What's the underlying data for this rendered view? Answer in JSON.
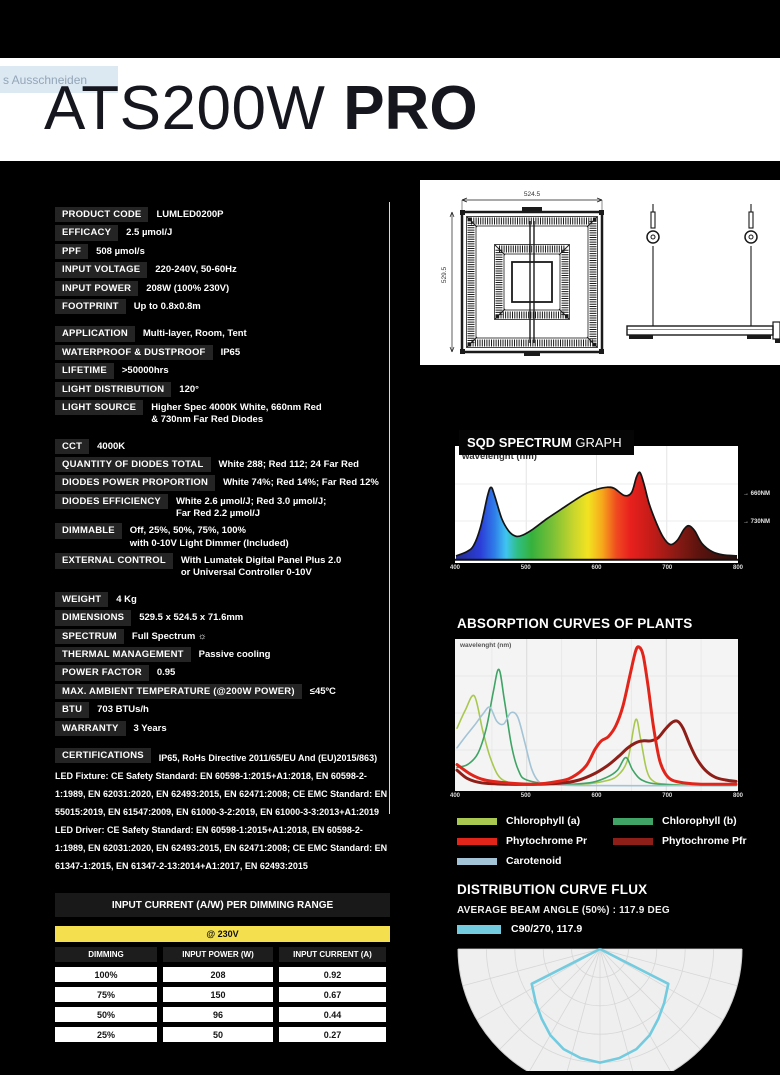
{
  "artifact": {
    "label": "s Ausschneiden"
  },
  "header": {
    "model": "ATS200W",
    "variant": "PRO"
  },
  "colors": {
    "accent_yellow": "#f4df4e",
    "curve_cyan": "#72cbdf",
    "spec_chip": "#242424"
  },
  "spec_groups": [
    [
      {
        "label": "PRODUCT CODE",
        "value": "LUMLED0200P"
      },
      {
        "label": "EFFICACY",
        "value": "2.5 µmol/J"
      },
      {
        "label": "PPF",
        "value": "508 µmol/s"
      },
      {
        "label": "INPUT VOLTAGE",
        "value": "220-240V, 50-60Hz"
      },
      {
        "label": "INPUT POWER",
        "value": "208W (100% 230V)"
      },
      {
        "label": "FOOTPRINT",
        "value": "Up to 0.8x0.8m"
      }
    ],
    [
      {
        "label": "APPLICATION",
        "value": "Multi-layer, Room, Tent"
      },
      {
        "label": "WATERPROOF & DUSTPROOF",
        "value": "IP65"
      },
      {
        "label": "LIFETIME",
        "value": ">50000hrs"
      },
      {
        "label": "LIGHT DISTRIBUTION",
        "value": "120°"
      },
      {
        "label": "LIGHT SOURCE",
        "value": "Higher Spec 4000K White, 660nm Red\n& 730nm Far Red Diodes"
      }
    ],
    [
      {
        "label": "CCT",
        "value": "4000K"
      },
      {
        "label": "QUANTITY OF DIODES TOTAL",
        "value": "White 288; Red 112; 24 Far Red"
      },
      {
        "label": "DIODES POWER PROPORTION",
        "value": "White 74%; Red 14%; Far Red 12%"
      },
      {
        "label": "DIODES EFFICIENCY",
        "value": "White 2.6 µmol/J; Red 3.0 µmol/J;\nFar Red 2.2 µmol/J"
      },
      {
        "label": "DIMMABLE",
        "value": "Off, 25%, 50%, 75%, 100%\nwith 0-10V Light Dimmer (Included)"
      },
      {
        "label": "EXTERNAL CONTROL",
        "value": "With Lumatek Digital Panel Plus 2.0\nor Universal Controller 0-10V"
      }
    ],
    [
      {
        "label": "WEIGHT",
        "value": "4 Kg"
      },
      {
        "label": "DIMENSIONS",
        "value": "529.5 x 524.5 x 71.6mm"
      },
      {
        "label": "SPECTRUM",
        "value": "Full Spectrum ☼"
      },
      {
        "label": "THERMAL MANAGEMENT",
        "value": "Passive cooling"
      },
      {
        "label": "POWER FACTOR",
        "value": "0.95"
      },
      {
        "label": "MAX. AMBIENT TEMPERATURE (@200W POWER)",
        "value": "≤45ºC"
      },
      {
        "label": "BTU",
        "value": "703 BTUs/h"
      },
      {
        "label": "WARRANTY",
        "value": "3 Years"
      }
    ],
    [
      {
        "label": "CERTIFICATIONS",
        "flow": true,
        "value": "IP65, RoHs Directive 2011/65/EU And (EU)2015/863)\nLED Fixture: CE Safety Standard: EN 60598-1:2015+A1:2018, EN 60598-2-1:1989, EN 62031:2020, EN 62493:2015, EN 62471:2008; CE EMC Standard: EN 55015:2019, EN 61547:2009, EN 61000-3-2:2019, EN 61000-3-3:2013+A1:2019\nLED Driver: CE Safety Standard: EN 60598-1:2015+A1:2018, EN 60598-2-1:1989, EN 62031:2020, EN 62493:2015, EN 62471:2008; CE EMC Standard: EN 61347-1:2015, EN 61347-2-13:2014+A1:2017, EN 62493:2015"
      }
    ]
  ],
  "drawing": {
    "dim_top": "524.5",
    "dim_left": "529.5"
  },
  "table": {
    "title_pre": "INPUT CURRENT ",
    "title_bold": "(A/W)",
    "title_post": " PER DIMMING RANGE",
    "voltage": "@ 230V",
    "headers": [
      "DIMMING",
      "INPUT POWER (W)",
      "INPUT CURRENT (A)"
    ],
    "rows": [
      [
        "100%",
        "208",
        "0.92"
      ],
      [
        "75%",
        "150",
        "0.67"
      ],
      [
        "50%",
        "96",
        "0.44"
      ],
      [
        "25%",
        "50",
        "0.27"
      ]
    ]
  },
  "chart_data": [
    {
      "id": "sqd-spectrum",
      "type": "area",
      "title_bold": "SQD SPECTRUM",
      "title_rest": "GRAPH",
      "xlabel": "wavelenght (nm)",
      "xlim": [
        400,
        800
      ],
      "x_ticks": [
        400,
        500,
        600,
        700,
        800
      ],
      "grid": true,
      "annotations": [
        "→ 660NM",
        "→ 730NM"
      ],
      "points": [
        [
          400,
          0.02
        ],
        [
          415,
          0.06
        ],
        [
          425,
          0.12
        ],
        [
          435,
          0.3
        ],
        [
          445,
          0.6
        ],
        [
          450,
          0.68
        ],
        [
          455,
          0.6
        ],
        [
          465,
          0.38
        ],
        [
          475,
          0.26
        ],
        [
          485,
          0.21
        ],
        [
          495,
          0.22
        ],
        [
          510,
          0.28
        ],
        [
          530,
          0.38
        ],
        [
          550,
          0.47
        ],
        [
          570,
          0.56
        ],
        [
          585,
          0.62
        ],
        [
          600,
          0.66
        ],
        [
          615,
          0.68
        ],
        [
          625,
          0.67
        ],
        [
          640,
          0.6
        ],
        [
          650,
          0.63
        ],
        [
          657,
          0.78
        ],
        [
          662,
          0.82
        ],
        [
          668,
          0.7
        ],
        [
          675,
          0.52
        ],
        [
          685,
          0.34
        ],
        [
          695,
          0.2
        ],
        [
          705,
          0.13
        ],
        [
          715,
          0.17
        ],
        [
          725,
          0.28
        ],
        [
          732,
          0.31
        ],
        [
          740,
          0.26
        ],
        [
          750,
          0.14
        ],
        [
          765,
          0.06
        ],
        [
          780,
          0.03
        ],
        [
          800,
          0.02
        ]
      ],
      "gradient": [
        [
          "0%",
          "#232a8f"
        ],
        [
          "9%",
          "#2b3ed8"
        ],
        [
          "14%",
          "#2f7de8"
        ],
        [
          "18%",
          "#3fc4f2"
        ],
        [
          "22%",
          "#2fbf86"
        ],
        [
          "27%",
          "#35b13c"
        ],
        [
          "35%",
          "#7fc136"
        ],
        [
          "42%",
          "#c9d62c"
        ],
        [
          "47%",
          "#f2e321"
        ],
        [
          "52%",
          "#f7a81b"
        ],
        [
          "57%",
          "#ef4b20"
        ],
        [
          "62%",
          "#e8201d"
        ],
        [
          "70%",
          "#c01c18"
        ],
        [
          "78%",
          "#8c1a14"
        ],
        [
          "86%",
          "#5d130e"
        ],
        [
          "100%",
          "#27100c"
        ]
      ]
    },
    {
      "id": "absorption-curves",
      "type": "line",
      "title": "ABSORPTION CURVES OF PLANTS",
      "xlabel": "wavelenght (nm)",
      "xlim": [
        400,
        800
      ],
      "x_ticks": [
        400,
        500,
        600,
        700,
        800
      ],
      "grid": true,
      "series": [
        {
          "name": "Chlorophyll (a)",
          "color": "#a9c850",
          "width": 1.6,
          "points": [
            [
              400,
              0.42
            ],
            [
              412,
              0.55
            ],
            [
              425,
              0.65
            ],
            [
              437,
              0.4
            ],
            [
              447,
              0.22
            ],
            [
              458,
              0.09
            ],
            [
              470,
              0.04
            ],
            [
              490,
              0.02
            ],
            [
              530,
              0.02
            ],
            [
              580,
              0.02
            ],
            [
              610,
              0.04
            ],
            [
              630,
              0.08
            ],
            [
              645,
              0.2
            ],
            [
              656,
              0.48
            ],
            [
              663,
              0.35
            ],
            [
              672,
              0.12
            ],
            [
              682,
              0.04
            ],
            [
              700,
              0.02
            ],
            [
              750,
              0.01
            ],
            [
              800,
              0.01
            ]
          ]
        },
        {
          "name": "Chlorophyll (b)",
          "color": "#3fa465",
          "width": 1.6,
          "points": [
            [
              400,
              0.14
            ],
            [
              415,
              0.16
            ],
            [
              430,
              0.24
            ],
            [
              442,
              0.42
            ],
            [
              452,
              0.68
            ],
            [
              460,
              0.84
            ],
            [
              468,
              0.62
            ],
            [
              478,
              0.3
            ],
            [
              488,
              0.12
            ],
            [
              500,
              0.05
            ],
            [
              540,
              0.02
            ],
            [
              590,
              0.03
            ],
            [
              615,
              0.07
            ],
            [
              630,
              0.12
            ],
            [
              642,
              0.21
            ],
            [
              652,
              0.12
            ],
            [
              665,
              0.05
            ],
            [
              690,
              0.02
            ],
            [
              750,
              0.01
            ],
            [
              800,
              0.01
            ]
          ]
        },
        {
          "name": "Carotenoid",
          "color": "#a3c4d6",
          "width": 1.6,
          "points": [
            [
              400,
              0.28
            ],
            [
              412,
              0.36
            ],
            [
              425,
              0.44
            ],
            [
              437,
              0.52
            ],
            [
              447,
              0.57
            ],
            [
              457,
              0.47
            ],
            [
              467,
              0.45
            ],
            [
              477,
              0.53
            ],
            [
              487,
              0.5
            ],
            [
              497,
              0.32
            ],
            [
              507,
              0.13
            ],
            [
              517,
              0.04
            ],
            [
              530,
              0.02
            ],
            [
              580,
              0.01
            ],
            [
              800,
              0.01
            ]
          ]
        },
        {
          "name": "Phytochrome Pfr",
          "color": "#8e1e18",
          "width": 3,
          "points": [
            [
              400,
              0.12
            ],
            [
              415,
              0.06
            ],
            [
              435,
              0.03
            ],
            [
              470,
              0.02
            ],
            [
              520,
              0.02
            ],
            [
              555,
              0.03
            ],
            [
              575,
              0.05
            ],
            [
              595,
              0.09
            ],
            [
              615,
              0.15
            ],
            [
              632,
              0.22
            ],
            [
              645,
              0.28
            ],
            [
              658,
              0.32
            ],
            [
              668,
              0.33
            ],
            [
              678,
              0.33
            ],
            [
              688,
              0.35
            ],
            [
              698,
              0.41
            ],
            [
              708,
              0.46
            ],
            [
              716,
              0.47
            ],
            [
              724,
              0.42
            ],
            [
              734,
              0.3
            ],
            [
              744,
              0.2
            ],
            [
              756,
              0.12
            ],
            [
              770,
              0.07
            ],
            [
              785,
              0.05
            ],
            [
              800,
              0.04
            ]
          ]
        },
        {
          "name": "Phytochrome Pr",
          "color": "#e1251b",
          "width": 3,
          "points": [
            [
              400,
              0.16
            ],
            [
              420,
              0.09
            ],
            [
              440,
              0.05
            ],
            [
              470,
              0.03
            ],
            [
              510,
              0.02
            ],
            [
              545,
              0.04
            ],
            [
              565,
              0.07
            ],
            [
              585,
              0.15
            ],
            [
              598,
              0.27
            ],
            [
              607,
              0.33
            ],
            [
              617,
              0.36
            ],
            [
              628,
              0.44
            ],
            [
              638,
              0.58
            ],
            [
              648,
              0.8
            ],
            [
              656,
              0.97
            ],
            [
              661,
              1.0
            ],
            [
              667,
              0.94
            ],
            [
              674,
              0.72
            ],
            [
              682,
              0.42
            ],
            [
              690,
              0.2
            ],
            [
              698,
              0.1
            ],
            [
              708,
              0.05
            ],
            [
              725,
              0.03
            ],
            [
              750,
              0.02
            ],
            [
              800,
              0.02
            ]
          ]
        }
      ],
      "legend": [
        [
          "Chlorophyll (a)",
          "#a9c850"
        ],
        [
          "Chlorophyll (b)",
          "#3fa465"
        ],
        [
          "Phytochrome Pr",
          "#e1251b"
        ],
        [
          "Phytochrome Pfr",
          "#8e1e18"
        ],
        [
          "Carotenoid",
          "#a3c4d6"
        ]
      ]
    },
    {
      "id": "distribution-curve",
      "type": "polar",
      "title": "DISTRIBUTION CURVE FLUX",
      "subtitle": "AVERAGE BEAM ANGLE (50%) : 117.9 DEG",
      "legend_label": "C90/270, 117.9",
      "color": "#72cbdf",
      "beam_angle_deg": 117.9,
      "curve": [
        [
          -90,
          0
        ],
        [
          -63,
          0.54
        ],
        [
          -50,
          0.59
        ],
        [
          -40,
          0.64
        ],
        [
          -30,
          0.7
        ],
        [
          -20,
          0.75
        ],
        [
          -10,
          0.78
        ],
        [
          0,
          0.8
        ],
        [
          10,
          0.78
        ],
        [
          20,
          0.75
        ],
        [
          30,
          0.7
        ],
        [
          40,
          0.64
        ],
        [
          50,
          0.59
        ],
        [
          63,
          0.54
        ],
        [
          90,
          0
        ]
      ]
    }
  ]
}
